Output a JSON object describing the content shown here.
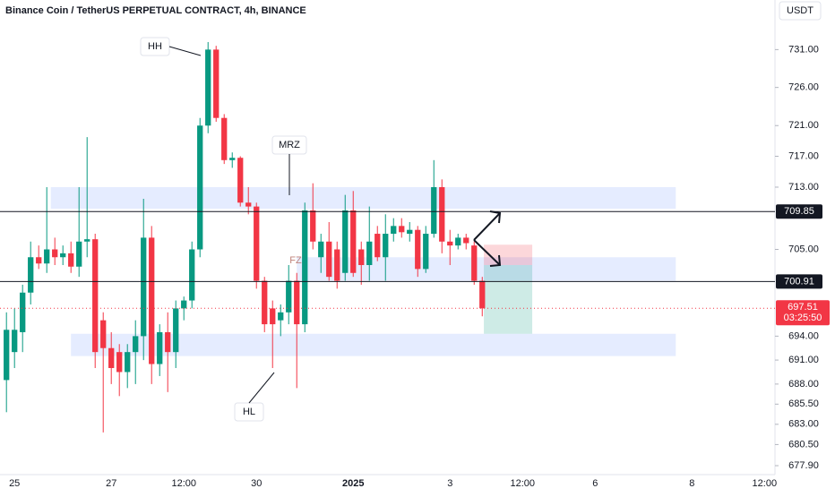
{
  "chart_data": {
    "type": "candlestick",
    "title": "Binance Coin / TetherUS PERPETUAL CONTRACT, 4h, BINANCE",
    "currency": "USDT",
    "up_color": "#089981",
    "down_color": "#f23645",
    "log_scale": true,
    "x": [
      0,
      1,
      2,
      3,
      4,
      5,
      6,
      7,
      8,
      9,
      10,
      11,
      12,
      13,
      14,
      15,
      16,
      17,
      18,
      19,
      20,
      21,
      22,
      23,
      24,
      25,
      26,
      27,
      28,
      29,
      30,
      31,
      32,
      33,
      34,
      35,
      36,
      37,
      38,
      39,
      40,
      41,
      42,
      43,
      44,
      45,
      46,
      47,
      48,
      49,
      50,
      51,
      52,
      53,
      54,
      55,
      56,
      57,
      58,
      59
    ],
    "open": [
      688.5,
      692,
      694.5,
      699.5,
      704,
      703.2,
      705,
      704,
      704.5,
      702.8,
      706,
      706.3,
      696,
      692.5,
      692,
      689.5,
      692,
      694,
      706.5,
      690.5,
      694.5,
      692,
      697.5,
      698.5,
      705,
      721,
      731,
      722,
      716.5,
      716.8,
      711,
      710.5,
      701,
      697.5,
      696,
      697,
      701,
      695.5,
      710,
      704,
      706,
      705,
      702,
      710,
      705,
      703,
      707,
      704,
      707,
      708,
      707,
      707.5,
      702.5,
      707,
      713,
      706,
      705.5,
      706.5,
      705.5,
      701
    ],
    "high": [
      697,
      697.5,
      700.5,
      706,
      705.5,
      713,
      706.5,
      705.5,
      706,
      713,
      719.5,
      707,
      697,
      694.5,
      693,
      693,
      696,
      711.5,
      708,
      695.5,
      697,
      698.5,
      699,
      706,
      722,
      732,
      731.5,
      722.5,
      717.5,
      717,
      713,
      711,
      701.5,
      698.5,
      698,
      703,
      702,
      711,
      713.5,
      707,
      708.5,
      706,
      712,
      712.5,
      706,
      710.5,
      708,
      709.5,
      709,
      709,
      708.5,
      708,
      708,
      716.5,
      714,
      707.5,
      707,
      707,
      706,
      701.5
    ],
    "low": [
      684.5,
      690,
      692,
      698,
      702.5,
      702,
      703,
      703,
      702,
      701.5,
      704,
      690,
      682,
      688,
      686.5,
      687.5,
      688,
      691,
      688,
      689,
      687,
      690,
      696,
      697.5,
      704,
      720,
      721.5,
      716,
      715.5,
      710.5,
      709.5,
      700,
      694.5,
      690,
      694,
      695.5,
      687.5,
      694.5,
      705,
      702,
      701,
      700,
      701,
      701.5,
      700.5,
      701,
      703.5,
      701,
      706,
      706.5,
      706,
      701.5,
      702,
      706.5,
      704.5,
      703,
      705,
      705,
      700.5,
      696.5
    ],
    "close": [
      694.8,
      694.8,
      699.5,
      704,
      703.2,
      705,
      704,
      704.5,
      702.8,
      706,
      706.3,
      692,
      692.5,
      690,
      689.5,
      692,
      694,
      706.5,
      690.5,
      694.5,
      692,
      697.5,
      698.5,
      705,
      721,
      731,
      722,
      716.5,
      716.8,
      711,
      710.5,
      701,
      695.5,
      695.5,
      697,
      701,
      695.5,
      710,
      706,
      706,
      701.5,
      701,
      710,
      702,
      703,
      706,
      704,
      707,
      708,
      707.2,
      707.5,
      702.5,
      707,
      713,
      706,
      705.5,
      706.5,
      705.8,
      701,
      697.51
    ],
    "xlim": [
      -0.8,
      95.3
    ],
    "xticks": [
      {
        "value": 1,
        "label": "25"
      },
      {
        "value": 13,
        "label": "27"
      },
      {
        "value": 22,
        "label": "12:00"
      },
      {
        "value": 31,
        "label": "30"
      },
      {
        "value": 43,
        "label": "2025"
      },
      {
        "value": 55,
        "label": "3"
      },
      {
        "value": 64,
        "label": "12:00"
      },
      {
        "value": 73,
        "label": "6"
      },
      {
        "value": 85,
        "label": "8"
      },
      {
        "value": 94,
        "label": "12:00"
      }
    ],
    "ylim": [
      676.8,
      737.6
    ],
    "yticks": [
      {
        "value": 731,
        "label": "731.00"
      },
      {
        "value": 726,
        "label": "726.00"
      },
      {
        "value": 721,
        "label": "721.00"
      },
      {
        "value": 717,
        "label": "717.00"
      },
      {
        "value": 713,
        "label": "713.00"
      },
      {
        "value": 705,
        "label": "705.00"
      },
      {
        "value": 694,
        "label": "694.00"
      },
      {
        "value": 691,
        "label": "691.00"
      },
      {
        "value": 688,
        "label": "688.00"
      },
      {
        "value": 685.5,
        "label": "685.50"
      },
      {
        "value": 683,
        "label": "683.00"
      },
      {
        "value": 680.5,
        "label": "680.50"
      },
      {
        "value": 677.9,
        "label": "677.90"
      }
    ],
    "price_lines": [
      {
        "value": 709.85,
        "label": "709.85"
      },
      {
        "value": 700.91,
        "label": "700.91"
      }
    ],
    "last_price": {
      "value": 697.51,
      "label": "697.51",
      "countdown": "03:25:50"
    },
    "zones": [
      {
        "low": 710.2,
        "high": 713,
        "start": 5.5,
        "end": 83
      },
      {
        "low": 701,
        "high": 704,
        "start": 36,
        "end": 83
      },
      {
        "low": 691.5,
        "high": 694.3,
        "start": 8,
        "end": 83
      }
    ],
    "position": {
      "stop": 705.6,
      "entry": 703,
      "target": 694.3,
      "start": 59.2,
      "end": 65.2
    },
    "annotations": [
      "HH",
      "MRZ",
      "FZ",
      "HL"
    ]
  }
}
